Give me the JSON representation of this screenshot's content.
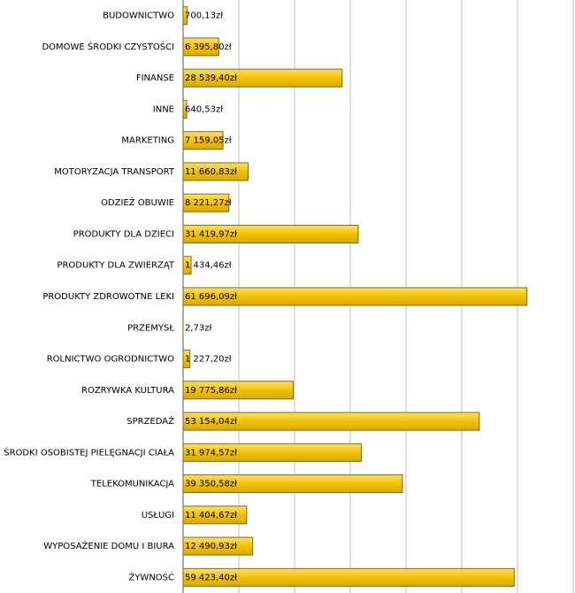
{
  "chart_data": {
    "type": "hbar",
    "categories": [
      "BUDOWNICTWO",
      "DOMOWE ŚRODKI CZYSTOŚCI",
      "FINANSE",
      "INNE",
      "MARKETING",
      "MOTORYZACJA TRANSPORT",
      "ODZIEŻ OBUWIE",
      "PRODUKTY DLA DZIECI",
      "PRODUKTY DLA ZWIERZĄT",
      "PRODUKTY ZDROWOTNE LEKI",
      "PRZEMYSŁ",
      "ROLNICTWO OGRODNICTWO",
      "ROZRYWKA KULTURA",
      "SPRZEDAŻ",
      "ŚRODKI OSOBISTEJ PIELĘGNACJI CIAŁA",
      "TELEKOMUNIKACJA",
      "USŁUGI",
      "WYPOSAŻENIE DOMU I BIURA",
      "ŻYWNOŚĆ"
    ],
    "values": [
      700.13,
      6395.8,
      28539.4,
      640.53,
      7159.05,
      11660.83,
      8221.27,
      31419.97,
      1434.46,
      61696.09,
      2.73,
      1227.2,
      19775.86,
      53154.04,
      31974.57,
      39350.58,
      11404.67,
      12490.93,
      59423.4
    ],
    "value_labels": [
      "700,13zł",
      "6 395,80zł",
      "28 539,40zł",
      "640,53zł",
      "7 159,05zł",
      "11 660,83zł",
      "8 221,27zł",
      "31 419,97zł",
      "1 434,46zł",
      "61 696,09zł",
      "2,73zł",
      "1 227,20zł",
      "19 775,86zł",
      "53 154,04zł",
      "31 974,57zł",
      "39 350,58zł",
      "11 404,67zł",
      "12 490,93zł",
      "59 423,40zł"
    ],
    "color": "#f2c200",
    "xlim": [
      0,
      70000
    ],
    "xticks": [
      0,
      10000,
      20000,
      30000,
      40000,
      50000,
      60000,
      70000
    ],
    "grid": true
  }
}
